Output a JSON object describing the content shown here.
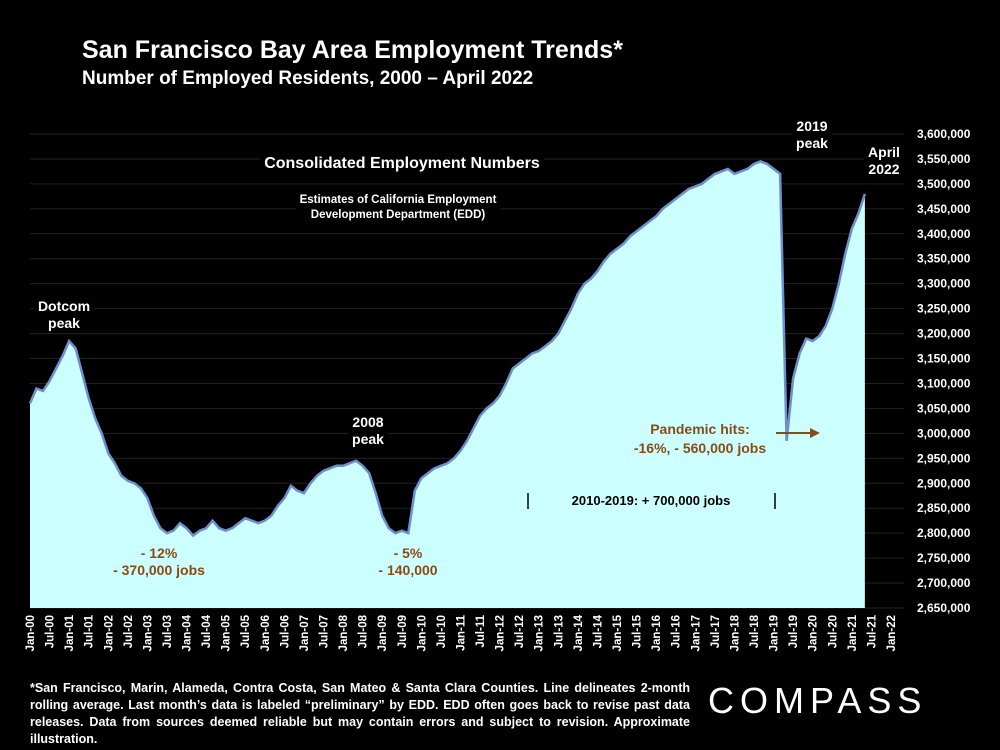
{
  "title": "San Francisco Bay Area Employment Trends*",
  "subtitle": "Number of Employed Residents, 2000 – April 2022",
  "footnote": "*San Francisco, Marin, Alameda, Contra Costa, San Mateo & Santa Clara Counties. Line delineates 2-month rolling average. Last month’s data is labeled “preliminary” by EDD. EDD often goes back to revise past data releases. Data from sources deemed reliable but may contain errors and subject to revision. Approximate illustration.",
  "logo": "COMPASS",
  "colors": {
    "fill": "#ccffff",
    "line": "#6e8fcf",
    "annotation": "#8b4a14",
    "background": "#000000"
  },
  "chart_data": {
    "type": "area",
    "title": "",
    "ylim": [
      2650000,
      3600000
    ],
    "ytick_labels": [
      "2,650,000",
      "2,700,000",
      "2,750,000",
      "2,800,000",
      "2,850,000",
      "2,900,000",
      "2,950,000",
      "3,000,000",
      "3,050,000",
      "3,100,000",
      "3,150,000",
      "3,200,000",
      "3,250,000",
      "3,300,000",
      "3,350,000",
      "3,400,000",
      "3,450,000",
      "3,500,000",
      "3,550,000",
      "3,600,000"
    ],
    "xtick_labels": [
      "Jan-00",
      "Jul-00",
      "Jan-01",
      "Jul-01",
      "Jan-02",
      "Jul-02",
      "Jan-03",
      "Jul-03",
      "Jan-04",
      "Jul-04",
      "Jan-05",
      "Jul-05",
      "Jan-06",
      "Jul-06",
      "Jan-07",
      "Jul-07",
      "Jan-08",
      "Jul-08",
      "Jan-09",
      "Jul-09",
      "Jan-10",
      "Jul-10",
      "Jan-11",
      "Jul-11",
      "Jan-12",
      "Jul-12",
      "Jan-13",
      "Jul-13",
      "Jan-14",
      "Jul-14",
      "Jan-15",
      "Jul-15",
      "Jan-16",
      "Jul-16",
      "Jan-17",
      "Jul-17",
      "Jan-18",
      "Jul-18",
      "Jan-19",
      "Jul-19",
      "Jan-20",
      "Jul-20",
      "Jan-21",
      "Jul-21",
      "Jan-22"
    ],
    "grid": true,
    "series": [
      {
        "values": [
          [
            0,
            3060000
          ],
          [
            2,
            3090000
          ],
          [
            4,
            3085000
          ],
          [
            6,
            3105000
          ],
          [
            8,
            3130000
          ],
          [
            10,
            3155000
          ],
          [
            12,
            3185000
          ],
          [
            14,
            3170000
          ],
          [
            16,
            3120000
          ],
          [
            18,
            3070000
          ],
          [
            20,
            3030000
          ],
          [
            22,
            3000000
          ],
          [
            24,
            2960000
          ],
          [
            26,
            2940000
          ],
          [
            28,
            2915000
          ],
          [
            30,
            2905000
          ],
          [
            32,
            2900000
          ],
          [
            34,
            2890000
          ],
          [
            36,
            2870000
          ],
          [
            38,
            2835000
          ],
          [
            40,
            2810000
          ],
          [
            42,
            2800000
          ],
          [
            44,
            2805000
          ],
          [
            46,
            2820000
          ],
          [
            48,
            2810000
          ],
          [
            50,
            2795000
          ],
          [
            52,
            2805000
          ],
          [
            54,
            2810000
          ],
          [
            56,
            2825000
          ],
          [
            58,
            2810000
          ],
          [
            60,
            2805000
          ],
          [
            62,
            2810000
          ],
          [
            64,
            2820000
          ],
          [
            66,
            2830000
          ],
          [
            68,
            2825000
          ],
          [
            70,
            2820000
          ],
          [
            72,
            2825000
          ],
          [
            74,
            2835000
          ],
          [
            76,
            2855000
          ],
          [
            78,
            2870000
          ],
          [
            80,
            2895000
          ],
          [
            82,
            2885000
          ],
          [
            84,
            2880000
          ],
          [
            86,
            2900000
          ],
          [
            88,
            2915000
          ],
          [
            90,
            2925000
          ],
          [
            92,
            2930000
          ],
          [
            94,
            2935000
          ],
          [
            96,
            2935000
          ],
          [
            98,
            2940000
          ],
          [
            100,
            2945000
          ],
          [
            102,
            2935000
          ],
          [
            104,
            2920000
          ],
          [
            106,
            2880000
          ],
          [
            108,
            2835000
          ],
          [
            110,
            2810000
          ],
          [
            112,
            2800000
          ],
          [
            114,
            2805000
          ],
          [
            116,
            2800000
          ],
          [
            118,
            2885000
          ],
          [
            120,
            2910000
          ],
          [
            122,
            2920000
          ],
          [
            124,
            2930000
          ],
          [
            126,
            2935000
          ],
          [
            128,
            2940000
          ],
          [
            130,
            2950000
          ],
          [
            132,
            2965000
          ],
          [
            134,
            2985000
          ],
          [
            136,
            3010000
          ],
          [
            138,
            3035000
          ],
          [
            140,
            3050000
          ],
          [
            142,
            3060000
          ],
          [
            144,
            3075000
          ],
          [
            146,
            3100000
          ],
          [
            148,
            3130000
          ],
          [
            150,
            3140000
          ],
          [
            152,
            3150000
          ],
          [
            154,
            3160000
          ],
          [
            156,
            3165000
          ],
          [
            158,
            3175000
          ],
          [
            160,
            3185000
          ],
          [
            162,
            3200000
          ],
          [
            164,
            3225000
          ],
          [
            166,
            3250000
          ],
          [
            168,
            3280000
          ],
          [
            170,
            3300000
          ],
          [
            172,
            3310000
          ],
          [
            174,
            3325000
          ],
          [
            176,
            3345000
          ],
          [
            178,
            3360000
          ],
          [
            180,
            3370000
          ],
          [
            182,
            3380000
          ],
          [
            184,
            3395000
          ],
          [
            186,
            3405000
          ],
          [
            188,
            3415000
          ],
          [
            190,
            3425000
          ],
          [
            192,
            3435000
          ],
          [
            194,
            3450000
          ],
          [
            196,
            3460000
          ],
          [
            198,
            3470000
          ],
          [
            200,
            3480000
          ],
          [
            202,
            3490000
          ],
          [
            204,
            3495000
          ],
          [
            206,
            3500000
          ],
          [
            208,
            3510000
          ],
          [
            210,
            3520000
          ],
          [
            212,
            3525000
          ],
          [
            214,
            3530000
          ],
          [
            216,
            3520000
          ],
          [
            218,
            3525000
          ],
          [
            220,
            3530000
          ],
          [
            222,
            3540000
          ],
          [
            224,
            3545000
          ],
          [
            226,
            3540000
          ],
          [
            228,
            3530000
          ],
          [
            230,
            3520000
          ],
          [
            232,
            2985000
          ],
          [
            234,
            3110000
          ],
          [
            236,
            3160000
          ],
          [
            238,
            3190000
          ],
          [
            240,
            3185000
          ],
          [
            242,
            3195000
          ],
          [
            244,
            3215000
          ],
          [
            246,
            3250000
          ],
          [
            248,
            3300000
          ],
          [
            250,
            3360000
          ],
          [
            252,
            3410000
          ],
          [
            254,
            3440000
          ],
          [
            256,
            3480000
          ]
        ]
      }
    ],
    "annotations": {
      "dotcom": "Dotcom\npeak",
      "drop1": "- 12%\n- 370,000 jobs",
      "peak2008": "2008\npeak",
      "drop2": "- 5%\n- 140,000",
      "consolidated": "Consolidated Employment Numbers",
      "edd": "Estimates of California Employment\nDevelopment Department (EDD)",
      "decade": "2010-2019: + 700,000 jobs",
      "pandemic": "Pandemic hits:\n-16%, - 560,000 jobs",
      "peak2019": "2019\npeak",
      "april2022": "April\n2022"
    }
  }
}
